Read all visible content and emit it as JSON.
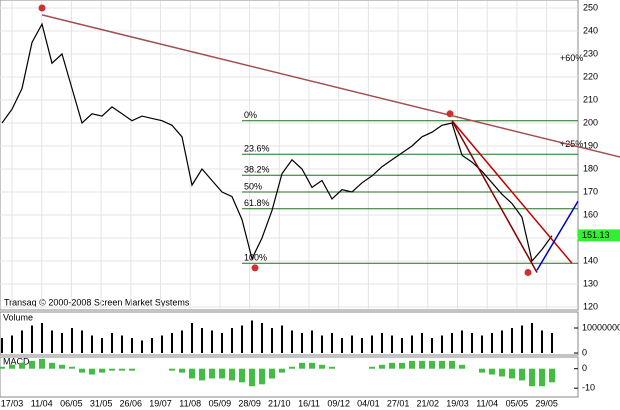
{
  "chart_data": {
    "type": "line",
    "x_labels": [
      "17/03",
      "11/04",
      "06/05",
      "31/05",
      "26/06",
      "19/07",
      "11/08",
      "05/09",
      "28/09",
      "21/10",
      "16/11",
      "09/12",
      "04/01",
      "27/01",
      "21/02",
      "19/03",
      "11/04",
      "05/05",
      "29/05"
    ],
    "series": [
      {
        "name": "close",
        "color": "#000000",
        "values": [
          200,
          206,
          215,
          235,
          243,
          226,
          230,
          215,
          200,
          204,
          203,
          207,
          204,
          201,
          203,
          202,
          201,
          199,
          194,
          173,
          180,
          175,
          170,
          168,
          158,
          141,
          150,
          162,
          178,
          184,
          180,
          172,
          175,
          167,
          171,
          170,
          174,
          177,
          181,
          184,
          187,
          190,
          194,
          196,
          199,
          200,
          186,
          183,
          179,
          174,
          169,
          165,
          159,
          140,
          145,
          151
        ]
      }
    ],
    "ylim": [
      120,
      250
    ],
    "yticks": [
      120,
      130,
      140,
      150,
      160,
      170,
      180,
      190,
      200,
      210,
      220,
      230,
      240,
      250
    ],
    "last_price": {
      "value": 151.13,
      "label": "151.13"
    },
    "fib": [
      {
        "label": "0%",
        "value": 201
      },
      {
        "label": "23.6%",
        "value": 186.4
      },
      {
        "label": "38.2%",
        "value": 177.3
      },
      {
        "label": "50%",
        "value": 170
      },
      {
        "label": "61.8%",
        "value": 162.7
      },
      {
        "label": "100%",
        "value": 139
      }
    ],
    "trend_lines": [
      {
        "color": "#a05050",
        "x": [
          4,
          62
        ],
        "y": [
          247,
          185
        ]
      },
      {
        "color": "#c00000",
        "x": [
          45,
          57
        ],
        "y": [
          201,
          139
        ]
      },
      {
        "color": "#800000",
        "x": [
          45,
          53.5
        ],
        "y": [
          201,
          135
        ]
      },
      {
        "color": "#0000c0",
        "x": [
          53.5,
          57.6
        ],
        "y": [
          136,
          166
        ]
      }
    ],
    "markers": [
      {
        "x": 4,
        "y": 250
      },
      {
        "x": 25.3,
        "y": 137
      },
      {
        "x": 44.8,
        "y": 204
      },
      {
        "x": 52.6,
        "y": 135
      }
    ],
    "notes": [
      {
        "label": "+60%",
        "x": 55.8,
        "y": 228
      },
      {
        "label": "+25%",
        "x": 55.8,
        "y": 190.5
      }
    ],
    "volume": {
      "label": "Volume",
      "color": "#000000",
      "ylim": [
        0,
        16000000
      ],
      "yticks": [
        0,
        10000000
      ],
      "values": [
        6000000,
        7000000,
        9000000,
        11000000,
        12000000,
        9000000,
        8000000,
        10000000,
        9000000,
        7000000,
        6000000,
        8000000,
        7000000,
        6000000,
        5000000,
        6000000,
        7000000,
        8000000,
        9000000,
        12000000,
        10000000,
        9000000,
        8000000,
        10000000,
        11000000,
        13000000,
        12000000,
        10000000,
        11000000,
        9000000,
        8000000,
        9000000,
        7000000,
        8000000,
        6000000,
        7000000,
        6000000,
        7000000,
        8000000,
        7000000,
        6000000,
        7000000,
        8000000,
        6000000,
        7000000,
        8000000,
        9000000,
        8000000,
        7000000,
        8000000,
        9000000,
        10000000,
        11000000,
        12000000,
        9000000,
        8000000
      ]
    },
    "macd": {
      "label": "MACD",
      "color": "#44bb44",
      "ylim": [
        -14,
        6
      ],
      "yticks": [
        -10,
        0
      ],
      "values": [
        1,
        2,
        3,
        4,
        5,
        3,
        2,
        1,
        -2,
        -3,
        -2,
        -1,
        -1,
        -1,
        0,
        0,
        0,
        -1,
        -2,
        -5,
        -6,
        -5,
        -5,
        -6,
        -7,
        -9,
        -8,
        -5,
        -2,
        1,
        3,
        3,
        2,
        1,
        0,
        0,
        0,
        1,
        2,
        3,
        3,
        4,
        4,
        4,
        4,
        4,
        2,
        0,
        -2,
        -3,
        -4,
        -5,
        -6,
        -9,
        -9,
        -7
      ]
    },
    "copyright": "Transaq © 2000-2008 Screen Market Systems"
  }
}
